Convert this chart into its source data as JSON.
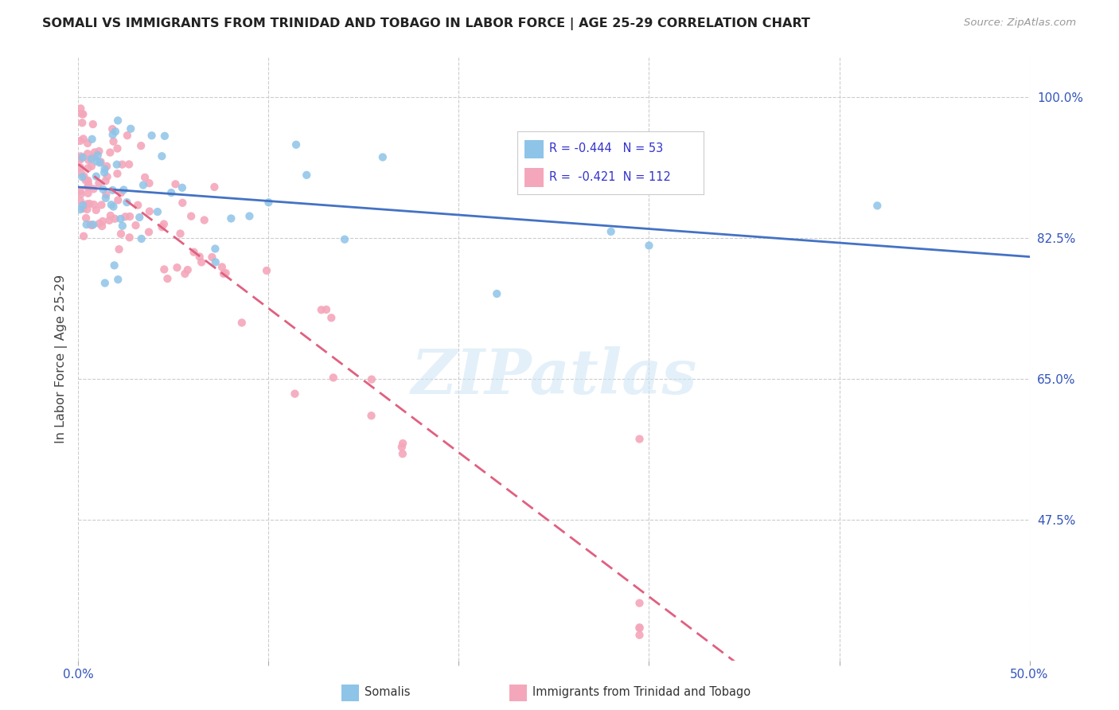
{
  "title": "SOMALI VS IMMIGRANTS FROM TRINIDAD AND TOBAGO IN LABOR FORCE | AGE 25-29 CORRELATION CHART",
  "source": "Source: ZipAtlas.com",
  "ylabel": "In Labor Force | Age 25-29",
  "xlim": [
    0.0,
    0.5
  ],
  "ylim": [
    0.3,
    1.05
  ],
  "x_ticks": [
    0.0,
    0.1,
    0.2,
    0.3,
    0.4,
    0.5
  ],
  "x_tick_labels": [
    "0.0%",
    "",
    "",
    "",
    "",
    "50.0%"
  ],
  "y_tick_labels_right": [
    "100.0%",
    "82.5%",
    "65.0%",
    "47.5%"
  ],
  "y_ticks_right": [
    1.0,
    0.825,
    0.65,
    0.475
  ],
  "watermark": "ZIPatlas",
  "blue_color": "#8ec4e8",
  "pink_color": "#f4a7bb",
  "blue_line_color": "#4472c4",
  "pink_line_color": "#e06080",
  "pink_line_dash": [
    6,
    3
  ],
  "legend_text_color": "#3333cc",
  "grid_color": "#cccccc",
  "background_color": "#ffffff"
}
